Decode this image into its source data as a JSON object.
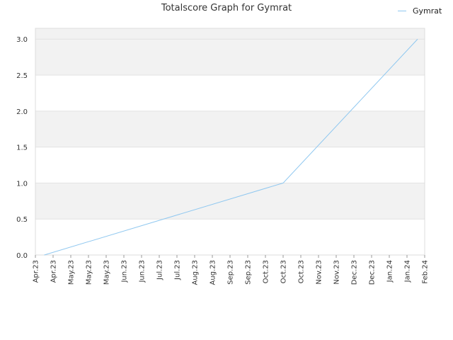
{
  "chart_data": {
    "type": "line",
    "title": "Totalscore Graph for Gymrat",
    "xlabel": "",
    "ylabel": "",
    "ylim": [
      0,
      3.15
    ],
    "yticks": [
      "0.0",
      "0.5",
      "1.0",
      "1.5",
      "2.0",
      "2.5",
      "3.0"
    ],
    "xticks": [
      "Apr.23",
      "Apr.23",
      "May.23",
      "May.23",
      "May.23",
      "Jun.23",
      "Jun.23",
      "Jul.23",
      "Jul.23",
      "Aug.23",
      "Aug.23",
      "Sep.23",
      "Sep.23",
      "Oct.23",
      "Oct.23",
      "Oct.23",
      "Nov.23",
      "Nov.23",
      "Dec.23",
      "Dec.23",
      "Jan.24",
      "Jan.24",
      "Feb.24"
    ],
    "grid": true,
    "legend_position": "top-right",
    "series": [
      {
        "name": "Gymrat",
        "color": "#90C8F0",
        "points": [
          {
            "x": "Apr.23",
            "y": 0
          },
          {
            "x": "Oct.23",
            "y": 1
          },
          {
            "x": "Jan.24",
            "y": 3
          }
        ]
      }
    ]
  }
}
